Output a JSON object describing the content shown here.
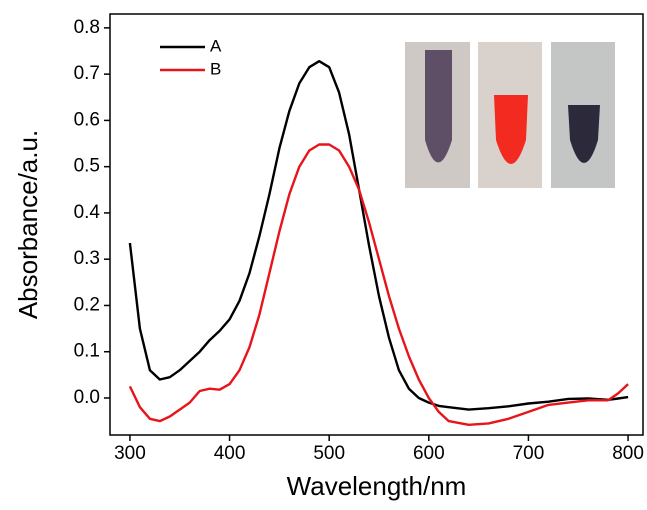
{
  "chart_data": {
    "type": "line",
    "xlabel": "Wavelength/nm",
    "ylabel": "Absorbance/a.u.",
    "x": [
      300,
      310,
      320,
      330,
      340,
      350,
      360,
      370,
      380,
      390,
      400,
      410,
      420,
      430,
      440,
      450,
      460,
      470,
      480,
      490,
      500,
      510,
      520,
      530,
      540,
      550,
      560,
      570,
      580,
      590,
      600,
      610,
      620,
      640,
      660,
      680,
      700,
      720,
      740,
      760,
      780,
      790,
      800
    ],
    "series": [
      {
        "name": "A",
        "color": "#000000",
        "values": [
          0.335,
          0.15,
          0.06,
          0.04,
          0.045,
          0.06,
          0.08,
          0.1,
          0.125,
          0.145,
          0.17,
          0.21,
          0.27,
          0.35,
          0.44,
          0.54,
          0.62,
          0.68,
          0.715,
          0.728,
          0.715,
          0.66,
          0.57,
          0.45,
          0.33,
          0.22,
          0.13,
          0.06,
          0.02,
          0.0,
          -0.01,
          -0.017,
          -0.02,
          -0.025,
          -0.022,
          -0.018,
          -0.012,
          -0.008,
          -0.002,
          -0.001,
          -0.004,
          -0.001,
          0.002
        ]
      },
      {
        "name": "B",
        "color": "#e8141b",
        "values": [
          0.025,
          -0.02,
          -0.045,
          -0.05,
          -0.04,
          -0.025,
          -0.01,
          0.015,
          0.02,
          0.018,
          0.03,
          0.06,
          0.11,
          0.18,
          0.27,
          0.36,
          0.44,
          0.5,
          0.535,
          0.548,
          0.548,
          0.535,
          0.5,
          0.45,
          0.38,
          0.3,
          0.22,
          0.15,
          0.09,
          0.04,
          0.0,
          -0.03,
          -0.05,
          -0.058,
          -0.055,
          -0.045,
          -0.03,
          -0.015,
          -0.01,
          -0.005,
          -0.005,
          0.01,
          0.03
        ]
      }
    ],
    "xlim": [
      280,
      815
    ],
    "ylim": [
      -0.08,
      0.83
    ],
    "xticks": [
      300,
      400,
      500,
      600,
      700,
      800
    ],
    "yticks": [
      {
        "value": 0,
        "label": "0.0"
      },
      0.1,
      0.2,
      0.3,
      0.4,
      0.5,
      0.6,
      0.7,
      0.8
    ],
    "legend": "upper left"
  }
}
